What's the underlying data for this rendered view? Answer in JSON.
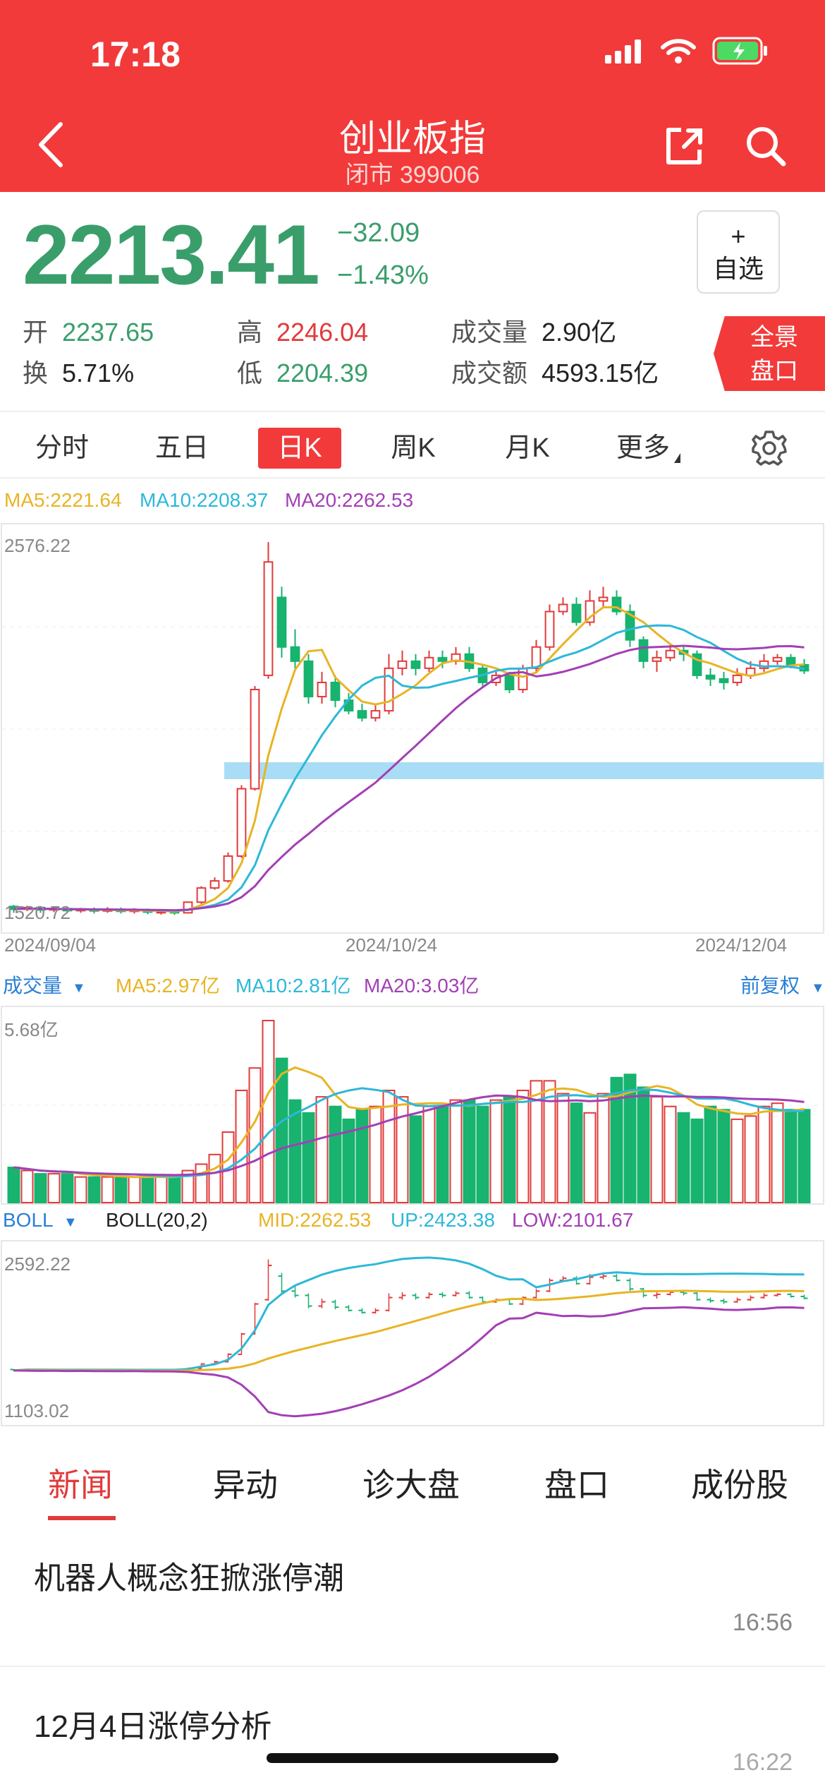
{
  "status": {
    "time": "17:18"
  },
  "nav": {
    "title": "创业板指",
    "subtitle": "闭市 399006"
  },
  "quote": {
    "price": "2213.41",
    "change": "−32.09",
    "change_pct": "−1.43%",
    "watch_plus": "+",
    "watch_label": "自选",
    "open_label": "开",
    "open": "2237.65",
    "turnover_label": "换",
    "turnover": "5.71%",
    "high_label": "高",
    "high": "2246.04",
    "low_label": "低",
    "low": "2204.39",
    "vol_label": "成交量",
    "vol": "2.90亿",
    "amt_label": "成交额",
    "amt": "4593.15亿",
    "full_btn_line1": "全景",
    "full_btn_line2": "盘口"
  },
  "tabs": [
    "分时",
    "五日",
    "日K",
    "周K",
    "月K",
    "更多"
  ],
  "active_tab": "日K",
  "main_chart": {
    "ma_legend": {
      "ma5": "MA5:2221.64",
      "ma10": "MA10:2208.37",
      "ma20": "MA20:2262.53"
    },
    "high_label": "2576.22",
    "low_label": "1520.72",
    "dates": [
      "2024/09/04",
      "2024/10/24",
      "2024/12/04"
    ]
  },
  "volume_chart": {
    "title": "成交量",
    "ma5": "MA5:2.97亿",
    "ma10": "MA10:2.81亿",
    "ma20": "MA20:3.03亿",
    "right_label": "前复权",
    "max_label": "5.68亿"
  },
  "boll_chart": {
    "title": "BOLL",
    "params": "BOLL(20,2)",
    "mid": "MID:2262.53",
    "up": "UP:2423.38",
    "low": "LOW:2101.67",
    "high_label": "2592.22",
    "low_label": "1103.02"
  },
  "colors": {
    "up": "#e23a3a",
    "down": "#17b36f",
    "ma5": "#e8b424",
    "ma10": "#2db8d8",
    "ma20": "#a33fb5",
    "support": "#a9ddf5"
  },
  "news_tabs": [
    "新闻",
    "异动",
    "诊大盘",
    "盘口",
    "成份股"
  ],
  "news": [
    {
      "title": "机器人概念狂掀涨停潮",
      "time": "16:56"
    },
    {
      "title": "12月4日涨停分析",
      "time": "16:22"
    }
  ],
  "chart_data": {
    "type": "candlestick",
    "series": [
      {
        "name": "K",
        "values": [
          [
            1548,
            1540,
            1552,
            1530
          ],
          [
            1540,
            1545,
            1550,
            1535
          ],
          [
            1545,
            1538,
            1548,
            1530
          ],
          [
            1538,
            1542,
            1548,
            1532
          ],
          [
            1542,
            1536,
            1546,
            1530
          ],
          [
            1536,
            1540,
            1544,
            1530
          ],
          [
            1540,
            1535,
            1545,
            1528
          ],
          [
            1535,
            1540,
            1546,
            1530
          ],
          [
            1540,
            1534,
            1545,
            1528
          ],
          [
            1534,
            1538,
            1543,
            1528
          ],
          [
            1538,
            1532,
            1542,
            1526
          ],
          [
            1532,
            1534,
            1540,
            1525
          ],
          [
            1534,
            1530,
            1538,
            1524
          ],
          [
            1530,
            1560,
            1562,
            1528
          ],
          [
            1560,
            1600,
            1605,
            1555
          ],
          [
            1600,
            1620,
            1630,
            1595
          ],
          [
            1620,
            1690,
            1700,
            1615
          ],
          [
            1690,
            1880,
            1890,
            1685
          ],
          [
            1880,
            2160,
            2170,
            1875
          ],
          [
            2200,
            2520,
            2576,
            2190
          ],
          [
            2420,
            2280,
            2450,
            2250
          ],
          [
            2280,
            2240,
            2330,
            2220
          ],
          [
            2240,
            2140,
            2260,
            2120
          ],
          [
            2140,
            2180,
            2210,
            2120
          ],
          [
            2180,
            2130,
            2200,
            2110
          ],
          [
            2130,
            2100,
            2150,
            2090
          ],
          [
            2100,
            2080,
            2120,
            2070
          ],
          [
            2080,
            2100,
            2120,
            2070
          ],
          [
            2100,
            2220,
            2260,
            2090
          ],
          [
            2220,
            2240,
            2270,
            2200
          ],
          [
            2240,
            2220,
            2260,
            2200
          ],
          [
            2220,
            2250,
            2270,
            2210
          ],
          [
            2250,
            2240,
            2270,
            2220
          ],
          [
            2240,
            2260,
            2280,
            2230
          ],
          [
            2260,
            2220,
            2280,
            2210
          ],
          [
            2220,
            2180,
            2230,
            2170
          ],
          [
            2180,
            2200,
            2210,
            2170
          ],
          [
            2200,
            2160,
            2210,
            2150
          ],
          [
            2160,
            2220,
            2230,
            2150
          ],
          [
            2220,
            2280,
            2300,
            2210
          ],
          [
            2280,
            2380,
            2400,
            2270
          ],
          [
            2380,
            2400,
            2420,
            2370
          ],
          [
            2400,
            2350,
            2420,
            2340
          ],
          [
            2350,
            2410,
            2440,
            2340
          ],
          [
            2410,
            2420,
            2450,
            2390
          ],
          [
            2420,
            2380,
            2440,
            2370
          ],
          [
            2380,
            2300,
            2400,
            2280
          ],
          [
            2300,
            2240,
            2310,
            2220
          ],
          [
            2240,
            2250,
            2270,
            2210
          ],
          [
            2250,
            2270,
            2290,
            2240
          ],
          [
            2270,
            2260,
            2280,
            2240
          ],
          [
            2260,
            2200,
            2270,
            2190
          ],
          [
            2200,
            2190,
            2220,
            2170
          ],
          [
            2190,
            2180,
            2210,
            2160
          ],
          [
            2180,
            2200,
            2220,
            2170
          ],
          [
            2200,
            2220,
            2240,
            2190
          ],
          [
            2220,
            2240,
            2260,
            2210
          ],
          [
            2240,
            2250,
            2260,
            2230
          ],
          [
            2250,
            2230,
            2260,
            2220
          ],
          [
            2230,
            2213,
            2246,
            2204
          ]
        ]
      }
    ],
    "volume": [
      1.1,
      1.0,
      0.9,
      0.9,
      0.9,
      0.8,
      0.8,
      0.8,
      0.8,
      0.8,
      0.8,
      0.8,
      0.8,
      1.0,
      1.2,
      1.5,
      2.2,
      3.5,
      4.2,
      5.68,
      4.5,
      3.2,
      2.8,
      3.3,
      3.0,
      2.6,
      2.9,
      3.0,
      3.5,
      3.3,
      2.7,
      3.0,
      3.0,
      3.2,
      3.2,
      3.0,
      3.2,
      3.3,
      3.5,
      3.8,
      3.8,
      3.4,
      3.1,
      2.8,
      3.4,
      3.9,
      4.0,
      3.6,
      3.3,
      3.0,
      2.8,
      2.6,
      3.0,
      2.9,
      2.6,
      2.7,
      3.0,
      3.1,
      2.9,
      2.9
    ],
    "title": "创业板指",
    "ylim": [
      1520.72,
      2576.22
    ]
  }
}
